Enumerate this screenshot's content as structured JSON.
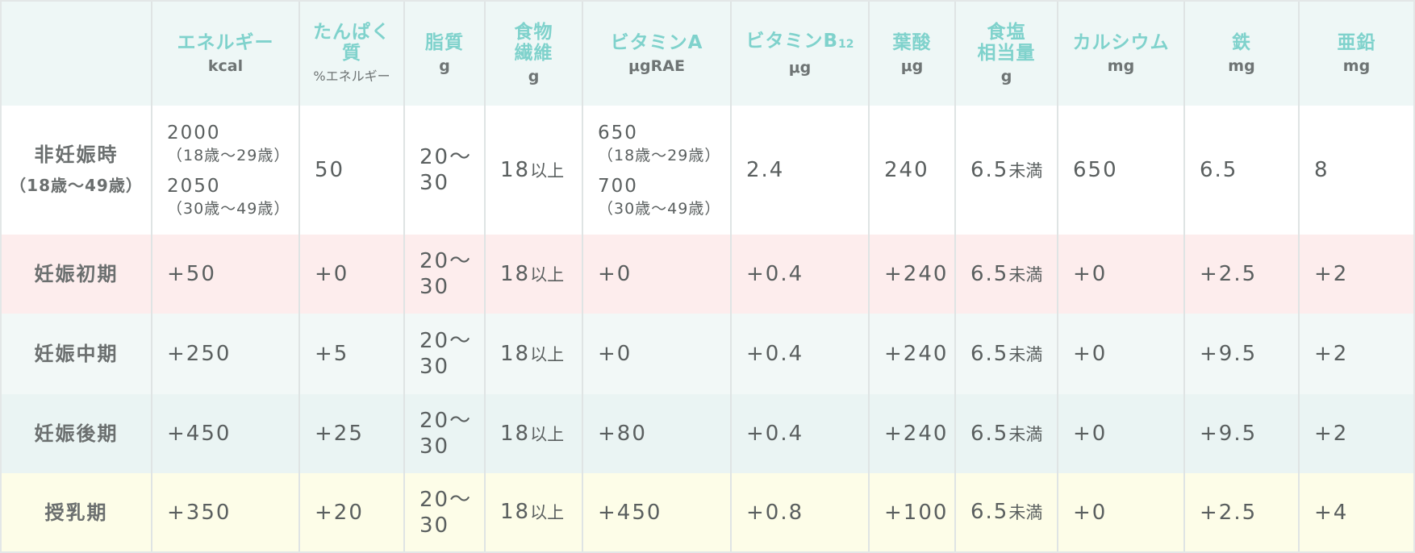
{
  "columns": [
    {
      "label": "",
      "unit": ""
    },
    {
      "label": "エネルギー",
      "unit": "kcal"
    },
    {
      "label": "たんぱく質",
      "unit": "%エネルギー"
    },
    {
      "label": "脂質",
      "unit": "g"
    },
    {
      "label": "食物繊維",
      "unit": "g"
    },
    {
      "label": "ビタミンA",
      "unit": "μgRAE"
    },
    {
      "label": "ビタミンB",
      "label_sub": "12",
      "unit": "μg"
    },
    {
      "label": "葉酸",
      "unit": "μg"
    },
    {
      "label": "食塩相当量",
      "unit": "g"
    },
    {
      "label": "カルシウム",
      "unit": "mg"
    },
    {
      "label": "鉄",
      "unit": "mg"
    },
    {
      "label": "亜鉛",
      "unit": "mg"
    }
  ],
  "header_lines": {
    "protein_1": "たんぱく",
    "protein_2": "質",
    "fiber_1": "食物",
    "fiber_2": "繊維",
    "salt_1": "食塩",
    "salt_2": "相当量"
  },
  "rows": [
    {
      "label": "非妊娠時",
      "sublabel": "（18歳〜49歳）",
      "energy": {
        "v1": "2000",
        "n1": "（18歳〜29歳）",
        "v2": "2050",
        "n2": "（30歳〜49歳）"
      },
      "protein": "50",
      "fat": "20〜30",
      "fiber_num": "18",
      "fiber_suffix": "以上",
      "vitA": {
        "v1": "650",
        "n1": "（18歳〜29歳）",
        "v2": "700",
        "n2": "（30歳〜49歳）"
      },
      "vitB12": "2.4",
      "folate": "240",
      "salt_num": "6.5",
      "salt_suffix": "未満",
      "calcium": "650",
      "iron": "6.5",
      "zinc": "8"
    },
    {
      "label": "妊娠初期",
      "energy": "+50",
      "protein": "+0",
      "fat": "20〜30",
      "fiber_num": "18",
      "fiber_suffix": "以上",
      "vitA": "+0",
      "vitB12": "+0.4",
      "folate": "+240",
      "salt_num": "6.5",
      "salt_suffix": "未満",
      "calcium": "+0",
      "iron": "+2.5",
      "zinc": "+2"
    },
    {
      "label": "妊娠中期",
      "energy": "+250",
      "protein": "+5",
      "fat": "20〜30",
      "fiber_num": "18",
      "fiber_suffix": "以上",
      "vitA": "+0",
      "vitB12": "+0.4",
      "folate": "+240",
      "salt_num": "6.5",
      "salt_suffix": "未満",
      "calcium": "+0",
      "iron": "+9.5",
      "zinc": "+2"
    },
    {
      "label": "妊娠後期",
      "energy": "+450",
      "protein": "+25",
      "fat": "20〜30",
      "fiber_num": "18",
      "fiber_suffix": "以上",
      "vitA": "+80",
      "vitB12": "+0.4",
      "folate": "+240",
      "salt_num": "6.5",
      "salt_suffix": "未満",
      "calcium": "+0",
      "iron": "+9.5",
      "zinc": "+2"
    },
    {
      "label": "授乳期",
      "energy": "+350",
      "protein": "+20",
      "fat": "20〜30",
      "fiber_num": "18",
      "fiber_suffix": "以上",
      "vitA": "+450",
      "vitB12": "+0.8",
      "folate": "+100",
      "salt_num": "6.5",
      "salt_suffix": "未満",
      "calcium": "+0",
      "iron": "+2.5",
      "zinc": "+4"
    }
  ],
  "colors": {
    "header_bg": "#eef7f6",
    "header_text": "#7fd2cc",
    "row_early": "#fdeded",
    "row_mid": "#f2f8f7",
    "row_late": "#eaf4f3",
    "row_lactation": "#fdfde8"
  }
}
